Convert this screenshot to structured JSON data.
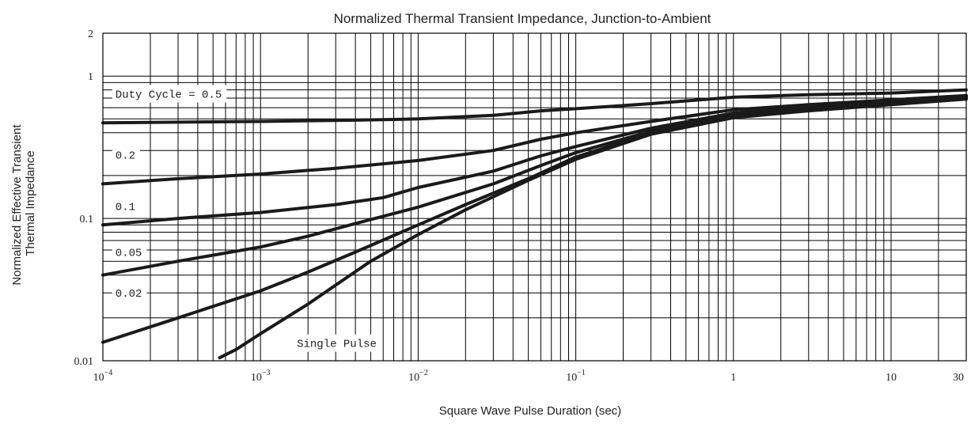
{
  "chart_data": {
    "type": "line",
    "title": "Normalized Thermal Transient Impedance, Junction-to-Ambient",
    "xlabel": "Square Wave Pulse Duration (sec)",
    "ylabel": [
      "Normalized Effective Transient",
      "Thermal Impedance"
    ],
    "x_scale": "log",
    "y_scale": "log",
    "xlim": [
      0.0001,
      30
    ],
    "ylim": [
      0.01,
      2
    ],
    "grid": true,
    "x_ticks": [
      {
        "value": 0.0001,
        "base": "10",
        "exp": "−4"
      },
      {
        "value": 0.001,
        "base": "10",
        "exp": "−3"
      },
      {
        "value": 0.01,
        "base": "10",
        "exp": "−2"
      },
      {
        "value": 0.1,
        "base": "10",
        "exp": "−1"
      },
      {
        "value": 1,
        "base": "1",
        "exp": ""
      },
      {
        "value": 10,
        "base": "10",
        "exp": ""
      },
      {
        "value": 30,
        "base": "30",
        "exp": ""
      }
    ],
    "y_ticks": [
      {
        "value": 0.01,
        "label": "0.01"
      },
      {
        "value": 0.1,
        "label": "0.1"
      },
      {
        "value": 1,
        "label": "1"
      },
      {
        "value": 2,
        "label": "2"
      }
    ],
    "series": [
      {
        "name": "Duty Cycle = 0.5",
        "label_x": 0.00012,
        "label_y": 0.75,
        "points": [
          [
            0.0001,
            0.47
          ],
          [
            0.001,
            0.48
          ],
          [
            0.004,
            0.49
          ],
          [
            0.01,
            0.5
          ],
          [
            0.03,
            0.53
          ],
          [
            0.06,
            0.57
          ],
          [
            0.1,
            0.59
          ],
          [
            0.3,
            0.64
          ],
          [
            1,
            0.71
          ],
          [
            3,
            0.74
          ],
          [
            10,
            0.76
          ],
          [
            30,
            0.8
          ]
        ]
      },
      {
        "name": "0.2",
        "label_x": 0.00012,
        "label_y": 0.28,
        "points": [
          [
            0.0001,
            0.175
          ],
          [
            0.0003,
            0.19
          ],
          [
            0.001,
            0.205
          ],
          [
            0.003,
            0.225
          ],
          [
            0.01,
            0.255
          ],
          [
            0.03,
            0.3
          ],
          [
            0.06,
            0.36
          ],
          [
            0.1,
            0.4
          ],
          [
            0.3,
            0.48
          ],
          [
            1,
            0.58
          ],
          [
            3,
            0.63
          ],
          [
            10,
            0.68
          ],
          [
            30,
            0.73
          ]
        ]
      },
      {
        "name": "0.1",
        "label_x": 0.00012,
        "label_y": 0.122,
        "points": [
          [
            0.0001,
            0.09
          ],
          [
            0.0003,
            0.1
          ],
          [
            0.001,
            0.11
          ],
          [
            0.003,
            0.125
          ],
          [
            0.006,
            0.14
          ],
          [
            0.01,
            0.165
          ],
          [
            0.03,
            0.215
          ],
          [
            0.06,
            0.275
          ],
          [
            0.1,
            0.32
          ],
          [
            0.3,
            0.43
          ],
          [
            1,
            0.55
          ],
          [
            3,
            0.61
          ],
          [
            10,
            0.67
          ],
          [
            30,
            0.72
          ]
        ]
      },
      {
        "name": "0.05",
        "label_x": 0.00012,
        "label_y": 0.058,
        "points": [
          [
            0.0001,
            0.04
          ],
          [
            0.0003,
            0.05
          ],
          [
            0.001,
            0.063
          ],
          [
            0.002,
            0.075
          ],
          [
            0.004,
            0.092
          ],
          [
            0.01,
            0.12
          ],
          [
            0.03,
            0.175
          ],
          [
            0.06,
            0.235
          ],
          [
            0.1,
            0.29
          ],
          [
            0.3,
            0.41
          ],
          [
            1,
            0.53
          ],
          [
            3,
            0.59
          ],
          [
            10,
            0.65
          ],
          [
            30,
            0.71
          ]
        ]
      },
      {
        "name": "0.02",
        "label_x": 0.00012,
        "label_y": 0.03,
        "points": [
          [
            0.0001,
            0.0135
          ],
          [
            0.0003,
            0.02
          ],
          [
            0.001,
            0.031
          ],
          [
            0.002,
            0.042
          ],
          [
            0.004,
            0.058
          ],
          [
            0.01,
            0.09
          ],
          [
            0.02,
            0.125
          ],
          [
            0.05,
            0.19
          ],
          [
            0.1,
            0.27
          ],
          [
            0.3,
            0.4
          ],
          [
            1,
            0.52
          ],
          [
            3,
            0.58
          ],
          [
            10,
            0.64
          ],
          [
            30,
            0.7
          ]
        ]
      },
      {
        "name": "Single Pulse",
        "label_x": 0.0017,
        "label_y": 0.0133,
        "points": [
          [
            0.00055,
            0.0105
          ],
          [
            0.0007,
            0.012
          ],
          [
            0.001,
            0.0155
          ],
          [
            0.002,
            0.025
          ],
          [
            0.003,
            0.034
          ],
          [
            0.005,
            0.05
          ],
          [
            0.01,
            0.077
          ],
          [
            0.02,
            0.115
          ],
          [
            0.05,
            0.185
          ],
          [
            0.1,
            0.26
          ],
          [
            0.3,
            0.39
          ],
          [
            1,
            0.51
          ],
          [
            3,
            0.57
          ],
          [
            10,
            0.63
          ],
          [
            30,
            0.69
          ]
        ]
      }
    ]
  }
}
